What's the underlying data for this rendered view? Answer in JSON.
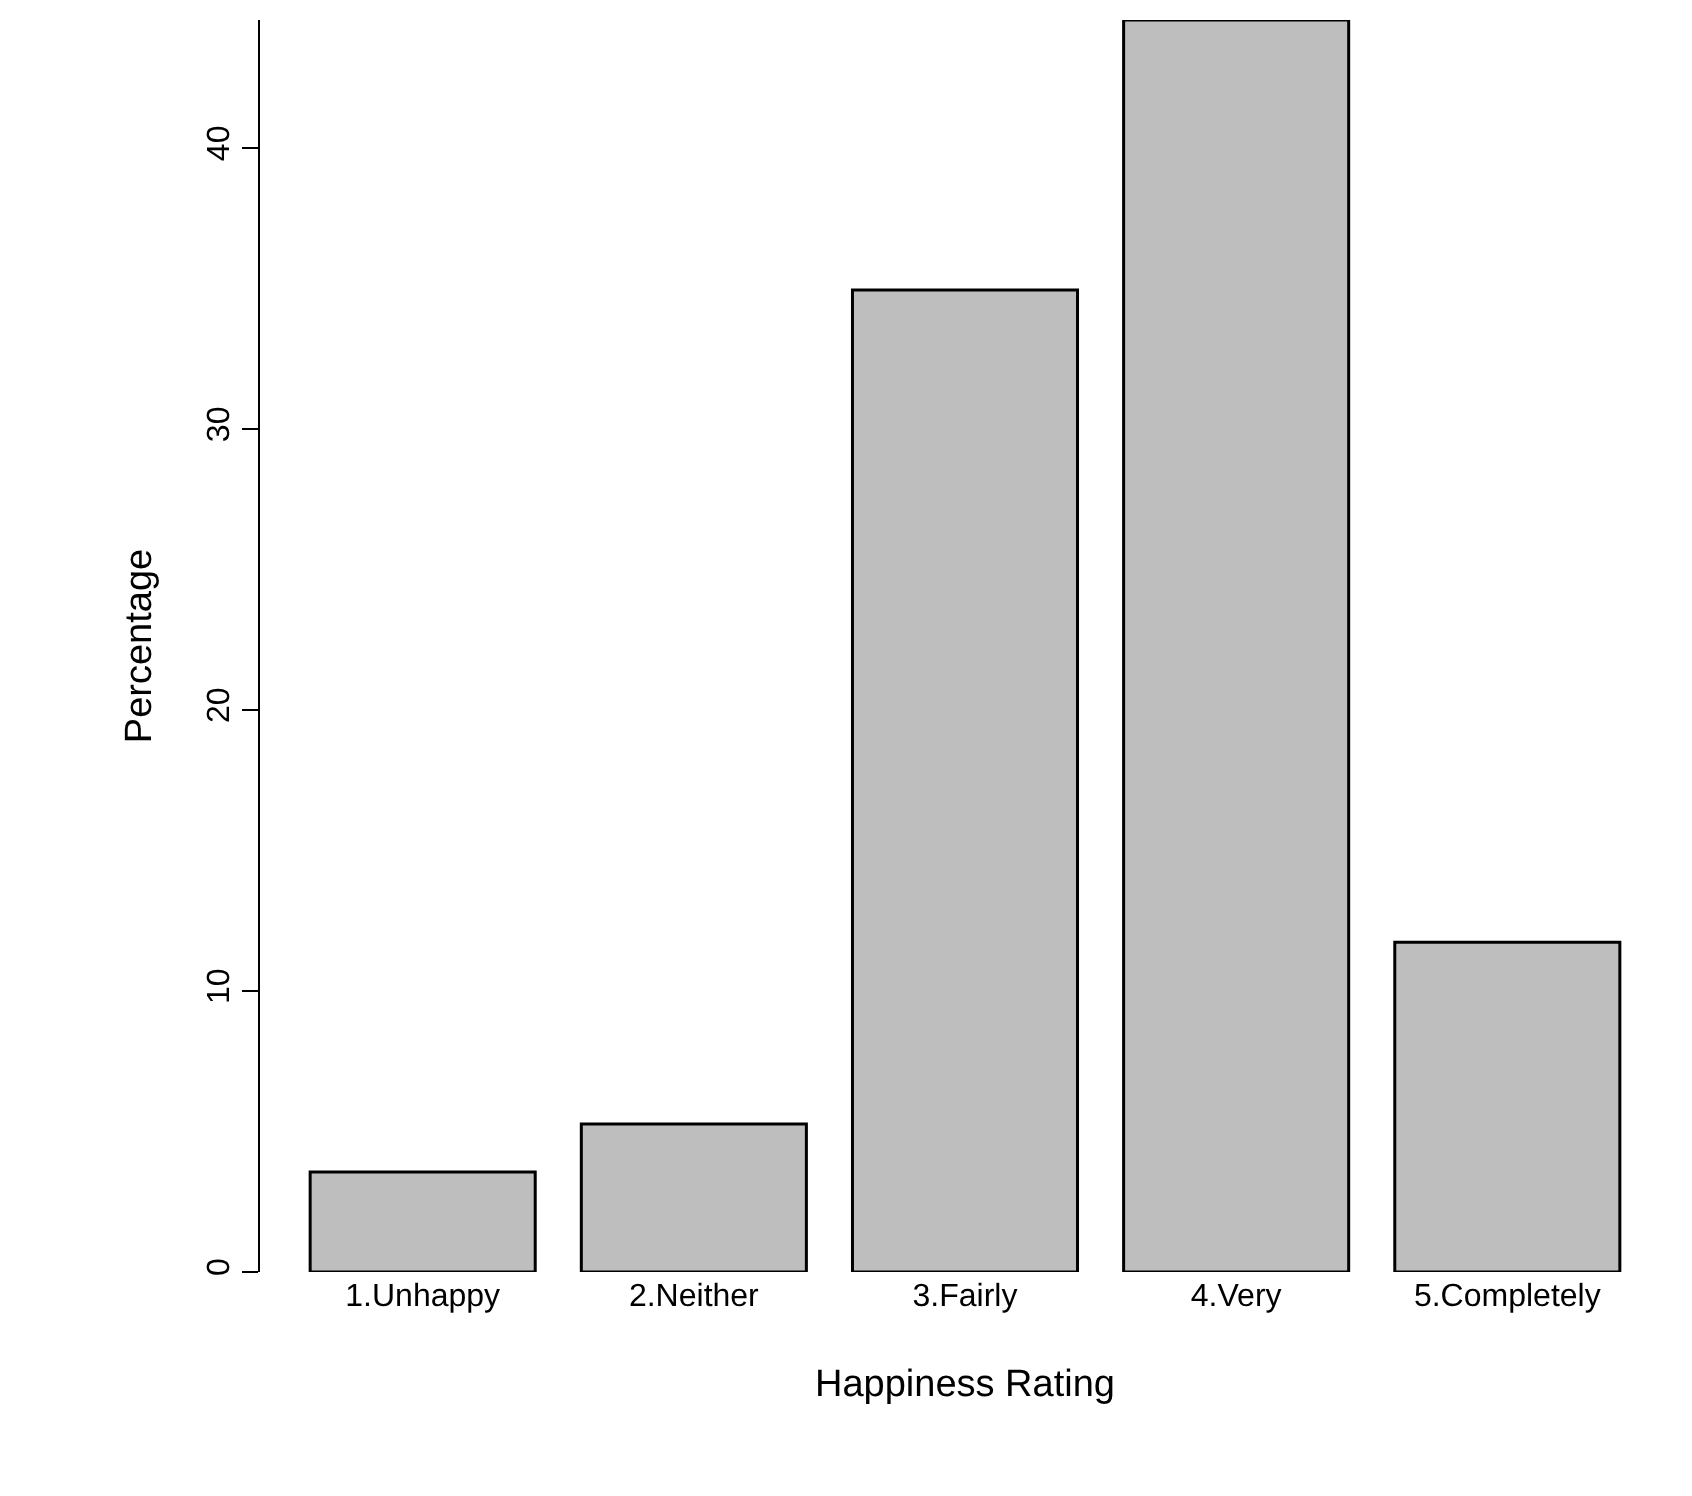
{
  "chart_data": {
    "type": "bar",
    "xlabel": "Happiness Rating",
    "ylabel": "Percentage",
    "categories": [
      "1.Unhappy",
      "2.Neither",
      "3.Fairly",
      "4.Very",
      "5.Completely"
    ],
    "values": [
      3.56,
      5.27,
      34.95,
      44.56,
      11.74
    ],
    "color": "#bebebe",
    "ylim": [
      0,
      44.56
    ],
    "yticks": [
      0,
      10,
      20,
      30,
      40
    ]
  }
}
